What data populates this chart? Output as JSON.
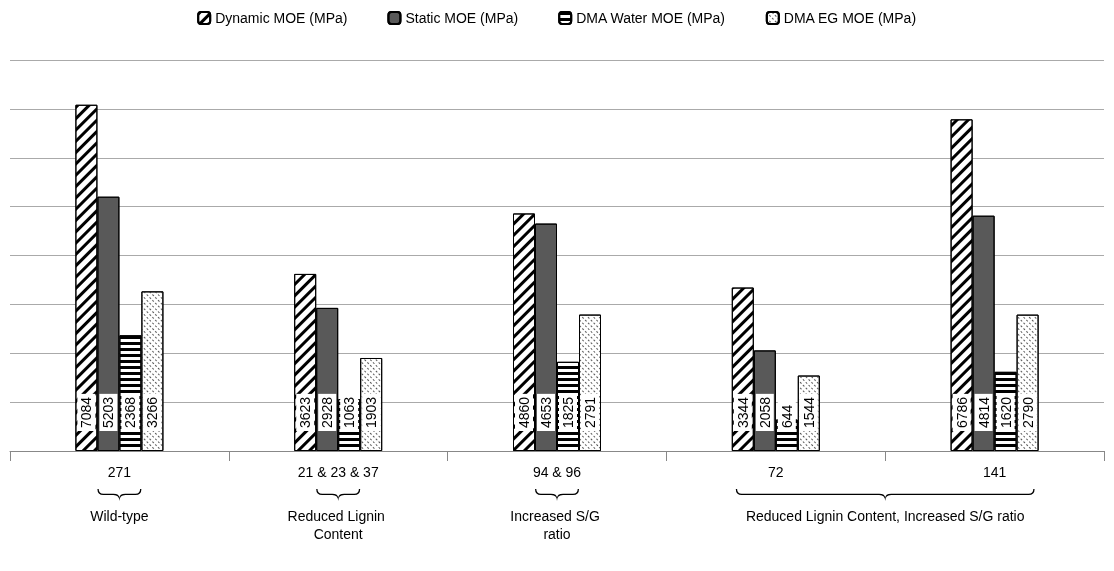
{
  "chart_data": {
    "type": "bar",
    "categories": [
      "271",
      "21 & 23 & 37",
      "94 & 96",
      "72",
      "141"
    ],
    "series": [
      {
        "name": "Dynamic MOE (MPa)",
        "color": "#ffffff",
        "values": [
          7084,
          3623,
          4860,
          3344,
          6786
        ]
      },
      {
        "name": "Static MOE (MPa)",
        "color": "#595959",
        "values": [
          5203,
          2928,
          4653,
          2058,
          4814
        ]
      },
      {
        "name": "DMA Water MOE (MPa)",
        "color": "#ffffff",
        "values": [
          2368,
          1063,
          1825,
          644,
          1620
        ]
      },
      {
        "name": "DMA EG MOE (MPa)",
        "color": "#ffffff",
        "values": [
          3266,
          1903,
          2791,
          1544,
          2790
        ]
      }
    ],
    "data_labels": true,
    "grid": "y",
    "legend": "top",
    "tick_labels": "x",
    "annotations": [
      "Wild-type",
      "Reduced Lignin Content",
      "Increased S/G ratio",
      "Reduced Lignin Content, Increased S/G ratio"
    ]
  }
}
